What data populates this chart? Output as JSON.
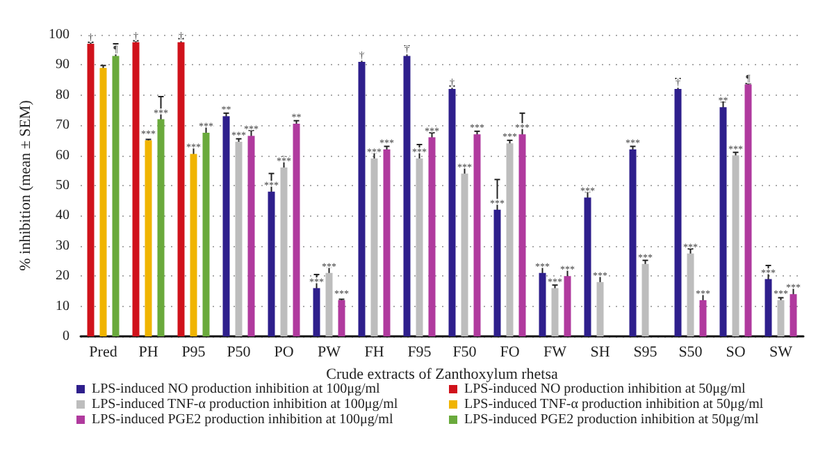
{
  "chart_data": {
    "type": "bar",
    "ylabel": "% inhibition (mean ± SEM)",
    "xlabel": "Crude extracts of Zanthoxylum rhetsa",
    "categories": [
      "Pred",
      "PH",
      "P95",
      "P50",
      "PO",
      "PW",
      "FH",
      "F95",
      "F50",
      "FO",
      "FW",
      "SH",
      "S95",
      "S50",
      "SO",
      "SW"
    ],
    "series": [
      {
        "name": "LPS-induced NO production inhibition at 100μg/ml",
        "color": "#2e1f8c",
        "values": [
          null,
          null,
          null,
          73,
          48,
          16,
          91,
          93,
          82,
          42,
          21,
          46,
          62,
          82,
          76,
          19
        ],
        "errors": [
          null,
          null,
          null,
          1,
          6,
          4.5,
          3,
          3.3,
          1,
          10,
          2.5,
          2,
          1,
          3.5,
          1.8,
          4.5
        ],
        "value_labels": [
          null,
          null,
          null,
          "**",
          "***",
          "***",
          "†",
          "†",
          "†",
          "***",
          "***",
          "***",
          "***",
          "†",
          "**",
          "***"
        ]
      },
      {
        "name": "LPS-induced NO production inhibition at 50μg/ml",
        "color": "#d0121b",
        "values": [
          97,
          97.5,
          97.5,
          null,
          null,
          null,
          null,
          null,
          null,
          null,
          null,
          null,
          null,
          null,
          null,
          null
        ],
        "errors": [
          0.5,
          0.5,
          1.2,
          null,
          null,
          null,
          null,
          null,
          null,
          null,
          null,
          null,
          null,
          null,
          null,
          null
        ],
        "value_labels": [
          "†",
          "†",
          "†",
          null,
          null,
          null,
          null,
          null,
          null,
          null,
          null,
          null,
          null,
          null,
          null,
          null
        ]
      },
      {
        "name": "LPS-induced TNF-α production inhibition at 100μg/ml",
        "color": "#bdbdbd",
        "values": [
          null,
          null,
          null,
          64.5,
          56,
          21,
          59,
          59,
          54,
          64,
          16,
          18,
          24,
          27.5,
          60,
          12
        ],
        "errors": [
          null,
          null,
          null,
          1,
          3.5,
          2,
          2,
          4.6,
          3,
          1,
          1,
          2.5,
          1.2,
          1.5,
          1,
          0.8
        ],
        "value_labels": [
          null,
          null,
          null,
          "***",
          "***",
          "***",
          "***",
          "***",
          "***",
          "***",
          "***",
          "***",
          "***",
          "***",
          "***",
          "***"
        ]
      },
      {
        "name": "LPS-induced TNF-α production inhibition at 50μg/ml",
        "color": "#f0b400",
        "values": [
          89,
          65,
          60.5,
          null,
          null,
          null,
          null,
          null,
          null,
          null,
          null,
          null,
          null,
          null,
          null,
          null
        ],
        "errors": [
          0.8,
          0.3,
          3,
          null,
          null,
          null,
          null,
          null,
          null,
          null,
          null,
          null,
          null,
          null,
          null,
          null
        ],
        "value_labels": [
          null,
          "***",
          "***",
          null,
          null,
          null,
          null,
          null,
          null,
          null,
          null,
          null,
          null,
          null,
          null,
          null
        ]
      },
      {
        "name": "LPS-induced PGE2 production inhibition at 100μg/ml",
        "color": "#b03a9e",
        "values": [
          null,
          null,
          null,
          66.5,
          70.5,
          12,
          62,
          66,
          67,
          67,
          20,
          null,
          null,
          12,
          83.5,
          14
        ],
        "errors": [
          null,
          null,
          null,
          1.8,
          1,
          0.3,
          1,
          1.5,
          1,
          7,
          3,
          null,
          null,
          3,
          0.3,
          2.5
        ],
        "value_labels": [
          null,
          null,
          null,
          "***",
          "**",
          "***",
          "***",
          "***",
          "***",
          "***",
          "***",
          null,
          null,
          "***",
          "¶",
          "***"
        ]
      },
      {
        "name": "LPS-induced PGE2 production inhibition at 50μg/ml",
        "color": "#6aaa3c",
        "values": [
          93,
          72,
          67.5,
          null,
          null,
          null,
          null,
          null,
          null,
          null,
          null,
          null,
          null,
          null,
          null,
          null
        ],
        "errors": [
          4,
          7.5,
          2.5,
          null,
          null,
          null,
          null,
          null,
          null,
          null,
          null,
          null,
          null,
          null,
          null,
          null
        ],
        "value_labels": [
          "¶",
          "***",
          "***",
          null,
          null,
          null,
          null,
          null,
          null,
          null,
          null,
          null,
          null,
          null,
          null,
          null
        ]
      }
    ],
    "ylim": [
      0,
      100
    ],
    "yticks": [
      0,
      10,
      20,
      30,
      40,
      50,
      60,
      70,
      80,
      90,
      100
    ],
    "grid": "y",
    "legend": "bottom"
  }
}
